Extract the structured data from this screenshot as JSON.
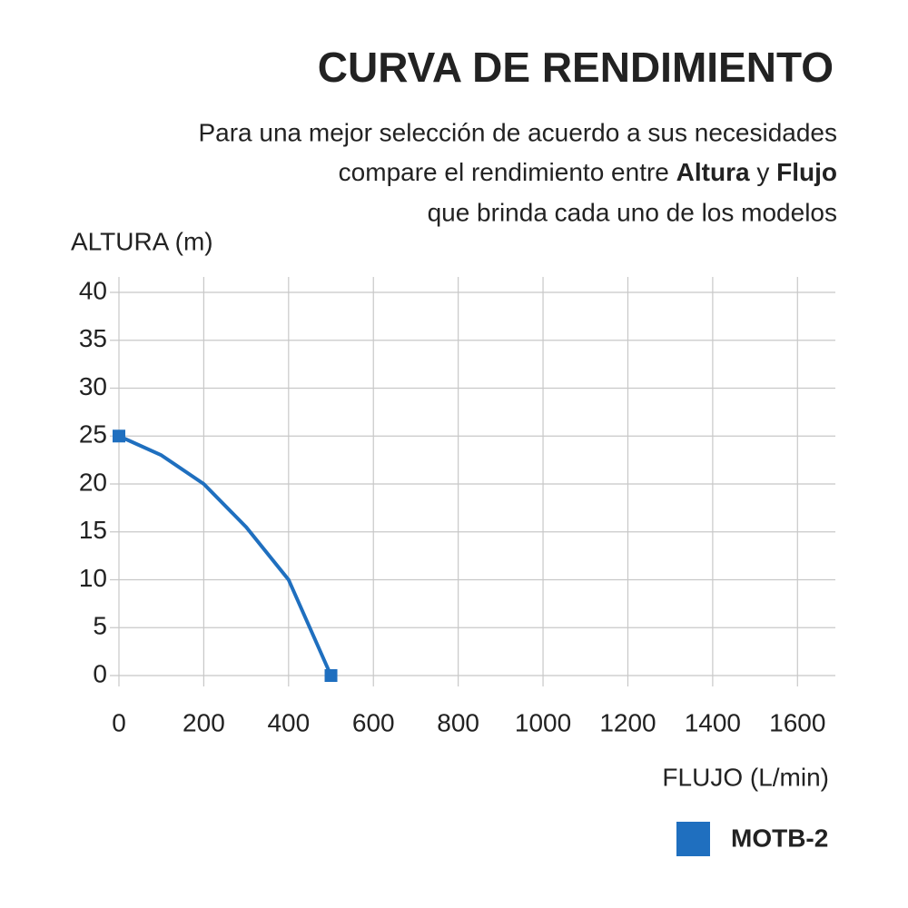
{
  "chart_data": {
    "type": "line",
    "title": "CURVA DE RENDIMIENTO",
    "subtitle": [
      "Para una mejor selección de acuerdo a sus necesidades",
      "compare el rendimiento entre ",
      "Altura",
      " y ",
      "Flujo",
      "que brinda cada uno de los modelos"
    ],
    "y_label": "ALTURA (m)",
    "x_label": "FLUJO (L/min)",
    "xlim": [
      0,
      1700
    ],
    "xticks": [
      0,
      200,
      400,
      600,
      800,
      1000,
      1200,
      1400,
      1600
    ],
    "ylim": [
      0,
      40
    ],
    "yticks": [
      0,
      5,
      10,
      15,
      20,
      25,
      30,
      35,
      40
    ],
    "grid": true,
    "series": [
      {
        "name": "MOTB-2",
        "color": "#1f6fbf",
        "x": [
          0,
          100,
          200,
          300,
          400,
          450,
          500
        ],
        "values": [
          25,
          23,
          20,
          15.5,
          10,
          5,
          0
        ]
      }
    ]
  }
}
